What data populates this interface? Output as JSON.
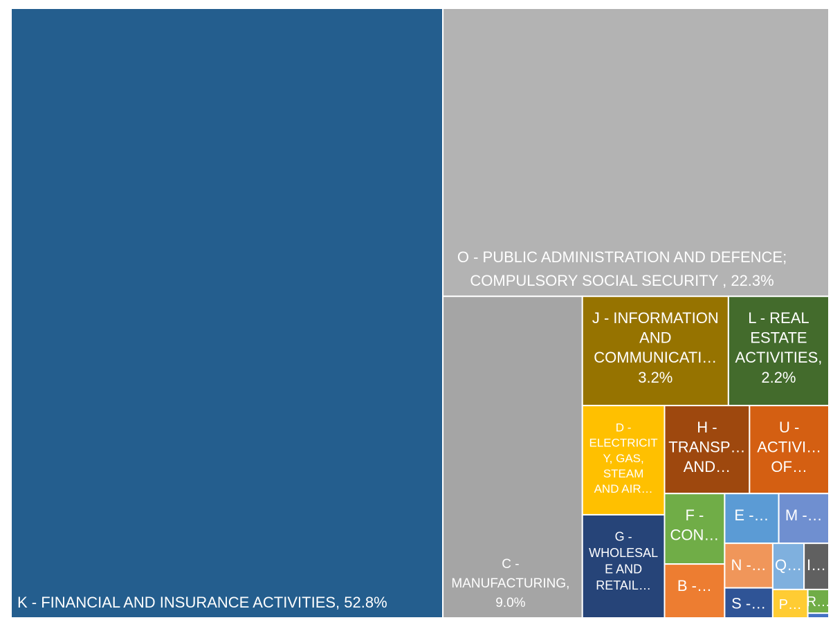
{
  "chart_data": {
    "type": "treemap",
    "labels": [
      [
        "K - FINANCIAL AND INSURANCE ACTIVITIES, 52.8%"
      ],
      [
        "O - PUBLIC ADMINISTRATION AND DEFENCE;",
        "COMPULSORY SOCIAL SECURITY , 22.3%"
      ],
      [
        "C -",
        "MANUFACTURING,",
        "9.0%"
      ],
      [
        "J - INFORMATION",
        "AND",
        "COMMUNICATI…",
        "3.2%"
      ],
      [
        "L - REAL",
        "ESTATE",
        "ACTIVITIES,",
        "2.2%"
      ],
      [
        "D -",
        "ELECTRICIT",
        "Y, GAS,",
        "STEAM",
        "AND AIR…"
      ],
      [
        "G -",
        "WHOLESAL",
        "E AND",
        "RETAIL…"
      ],
      [
        "H -",
        "TRANSP…",
        "AND…"
      ],
      [
        "U -",
        "ACTIVI…",
        "OF…"
      ],
      [
        "F -",
        "CON…"
      ],
      [
        "B -…"
      ],
      [
        "E -…"
      ],
      [
        "M -…"
      ],
      [
        "N -…"
      ],
      [
        "S -…"
      ],
      [
        "Q…"
      ],
      [
        "I…"
      ],
      [
        "P…"
      ],
      [
        "R…"
      ],
      null
    ],
    "values": [
      52.8,
      22.3,
      9.0,
      3.2,
      2.2,
      1.8,
      1.7,
      1.5,
      1.4,
      0.85,
      0.65,
      0.54,
      0.5,
      0.43,
      0.29,
      0.29,
      0.23,
      0.2,
      0.1,
      0.02
    ],
    "colors": [
      "#245e8e",
      "#b3b3b3",
      "#a5a5a5",
      "#967300",
      "#436b2c",
      "#ffc000",
      "#264478",
      "#9e480e",
      "#d45f12",
      "#70ad47",
      "#ed7d31",
      "#5b9bd5",
      "#6f8fd0",
      "#f0965a",
      "#2f5496",
      "#7fb0de",
      "#606060",
      "#ffcc33",
      "#70ad47",
      "#4472c4"
    ]
  }
}
